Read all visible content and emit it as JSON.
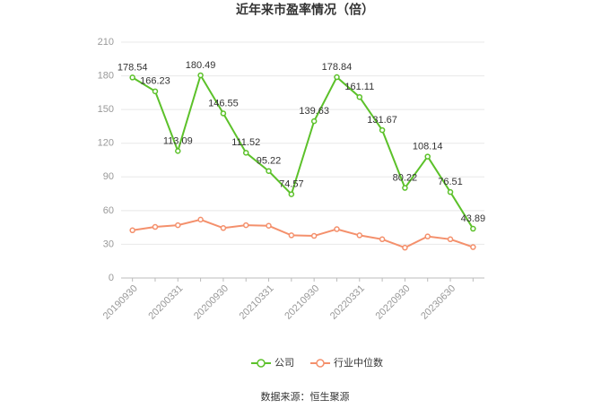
{
  "chart_data": {
    "type": "line",
    "title": "近年来市盈率情况（倍）",
    "categories": [
      "20190930",
      null,
      "20200331",
      null,
      "20200930",
      null,
      "20210331",
      null,
      "20210930",
      null,
      "20220331",
      null,
      "20220930",
      null,
      "20230630",
      null
    ],
    "series": [
      {
        "name": "公司",
        "color": "#5cc12a",
        "labels": true,
        "values": [
          178.54,
          166.23,
          113.09,
          180.49,
          146.55,
          111.52,
          95.22,
          74.57,
          139.63,
          178.84,
          161.11,
          131.67,
          80.22,
          108.14,
          76.51,
          43.89
        ]
      },
      {
        "name": "行业中位数",
        "color": "#f4906c",
        "labels": false,
        "values": [
          42.5,
          45.5,
          47,
          52,
          44.5,
          47,
          46.5,
          38,
          37.5,
          43.5,
          38,
          34.5,
          27,
          37,
          34.5,
          27.5
        ]
      }
    ],
    "ylim": [
      0,
      210
    ],
    "yticks": [
      0,
      30,
      60,
      90,
      120,
      150,
      180,
      210
    ],
    "grid": true,
    "legend": "bottom",
    "source": "数据来源：恒生聚源"
  }
}
